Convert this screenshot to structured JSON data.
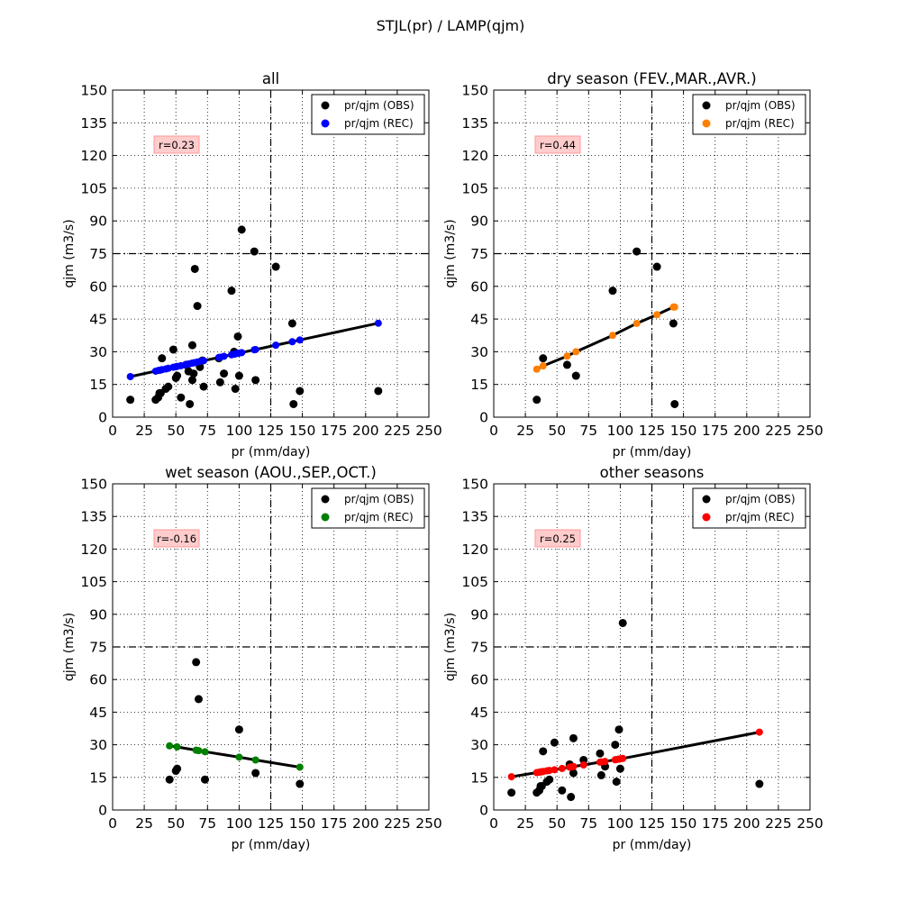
{
  "figure": {
    "suptitle": "STJL(pr) / LAMP(qjm)"
  },
  "chart_data": [
    {
      "type": "scatter",
      "title": "all",
      "xlabel": "pr (mm/day)",
      "ylabel": "qjm (m3/s)",
      "xlim": [
        0,
        250
      ],
      "ylim": [
        0,
        150
      ],
      "xticks": [
        "0",
        "25",
        "50",
        "75",
        "100",
        "125",
        "150",
        "175",
        "200",
        "225",
        "250"
      ],
      "yticks": [
        "0",
        "15",
        "30",
        "45",
        "60",
        "75",
        "90",
        "105",
        "120",
        "135",
        "150"
      ],
      "grid": true,
      "legend_position": "top-right",
      "ref_x": 125,
      "ref_y": 75,
      "annotation": "r=0.23",
      "rec_color": "#0000ff",
      "series": [
        {
          "name": "pr/qjm (OBS)",
          "color": "#000000",
          "points": [
            [
              14,
              8
            ],
            [
              34,
              8
            ],
            [
              36,
              9
            ],
            [
              37,
              11
            ],
            [
              38,
              11
            ],
            [
              39,
              27
            ],
            [
              42,
              13
            ],
            [
              44,
              14
            ],
            [
              48,
              31
            ],
            [
              50,
              18
            ],
            [
              51,
              19
            ],
            [
              54,
              9
            ],
            [
              58,
              24
            ],
            [
              60,
              21
            ],
            [
              61,
              6
            ],
            [
              63,
              17
            ],
            [
              63,
              33
            ],
            [
              64,
              20
            ],
            [
              65,
              68
            ],
            [
              67,
              51
            ],
            [
              69,
              23
            ],
            [
              71,
              26
            ],
            [
              72,
              14
            ],
            [
              84,
              27
            ],
            [
              85,
              16
            ],
            [
              88,
              20
            ],
            [
              94,
              58
            ],
            [
              96,
              30
            ],
            [
              97,
              13
            ],
            [
              99,
              37
            ],
            [
              100,
              19
            ],
            [
              102,
              86
            ],
            [
              112,
              76
            ],
            [
              113,
              17
            ],
            [
              129,
              69
            ],
            [
              142,
              43
            ],
            [
              143,
              6
            ],
            [
              148,
              12
            ],
            [
              210,
              12
            ]
          ]
        },
        {
          "name": "pr/qjm (REC)",
          "color": "#0000ff",
          "points": [
            [
              14,
              18.6
            ],
            [
              34,
              21.1
            ],
            [
              36,
              21.4
            ],
            [
              37,
              21.5
            ],
            [
              38,
              21.6
            ],
            [
              39,
              21.8
            ],
            [
              42,
              22.1
            ],
            [
              44,
              22.4
            ],
            [
              48,
              22.9
            ],
            [
              50,
              23.1
            ],
            [
              51,
              23.3
            ],
            [
              54,
              23.6
            ],
            [
              58,
              24.1
            ],
            [
              60,
              24.4
            ],
            [
              61,
              24.5
            ],
            [
              63,
              24.8
            ],
            [
              64,
              24.9
            ],
            [
              65,
              25.0
            ],
            [
              67,
              25.3
            ],
            [
              69,
              25.5
            ],
            [
              71,
              25.8
            ],
            [
              72,
              25.9
            ],
            [
              84,
              27.4
            ],
            [
              85,
              27.5
            ],
            [
              88,
              27.9
            ],
            [
              94,
              28.6
            ],
            [
              96,
              28.9
            ],
            [
              97,
              29.0
            ],
            [
              99,
              29.3
            ],
            [
              100,
              29.4
            ],
            [
              102,
              29.6
            ],
            [
              112,
              30.9
            ],
            [
              113,
              31.0
            ],
            [
              129,
              33.0
            ],
            [
              142,
              34.6
            ],
            [
              148,
              35.4
            ],
            [
              210,
              43.1
            ]
          ]
        }
      ]
    },
    {
      "type": "scatter",
      "title": "dry season (FEV.,MAR.,AVR.)",
      "xlabel": "pr (mm/day)",
      "ylabel": "qjm (m3/s)",
      "xlim": [
        0,
        250
      ],
      "ylim": [
        0,
        150
      ],
      "xticks": [
        "0",
        "25",
        "50",
        "75",
        "100",
        "125",
        "150",
        "175",
        "200",
        "225",
        "250"
      ],
      "yticks": [
        "0",
        "15",
        "30",
        "45",
        "60",
        "75",
        "90",
        "105",
        "120",
        "135",
        "150"
      ],
      "grid": true,
      "legend_position": "top-right",
      "ref_x": 125,
      "ref_y": 75,
      "annotation": "r=0.44",
      "rec_color": "#ff8000",
      "series": [
        {
          "name": "pr/qjm (OBS)",
          "color": "#000000",
          "points": [
            [
              34,
              8
            ],
            [
              39,
              27
            ],
            [
              58,
              24
            ],
            [
              65,
              19
            ],
            [
              94,
              58
            ],
            [
              113,
              76
            ],
            [
              129,
              69
            ],
            [
              142,
              43
            ],
            [
              143,
              6
            ]
          ]
        },
        {
          "name": "pr/qjm (REC)",
          "color": "#ff8000",
          "points": [
            [
              34,
              22
            ],
            [
              39,
              23.5
            ],
            [
              58,
              28
            ],
            [
              65,
              30
            ],
            [
              94,
              37.5
            ],
            [
              113,
              43
            ],
            [
              129,
              47
            ],
            [
              142,
              50.5
            ],
            [
              143,
              50.5
            ]
          ]
        }
      ]
    },
    {
      "type": "scatter",
      "title": "wet season (AOU.,SEP.,OCT.)",
      "xlabel": "pr (mm/day)",
      "ylabel": "qjm (m3/s)",
      "xlim": [
        0,
        250
      ],
      "ylim": [
        0,
        150
      ],
      "xticks": [
        "0",
        "25",
        "50",
        "75",
        "100",
        "125",
        "150",
        "175",
        "200",
        "225",
        "250"
      ],
      "yticks": [
        "0",
        "15",
        "30",
        "45",
        "60",
        "75",
        "90",
        "105",
        "120",
        "135",
        "150"
      ],
      "grid": true,
      "legend_position": "top-right",
      "ref_x": 125,
      "ref_y": 75,
      "annotation": "r=-0.16",
      "rec_color": "#008000",
      "series": [
        {
          "name": "pr/qjm (OBS)",
          "color": "#000000",
          "points": [
            [
              45,
              14
            ],
            [
              50,
              18
            ],
            [
              51,
              19
            ],
            [
              66,
              68
            ],
            [
              68,
              51
            ],
            [
              73,
              14
            ],
            [
              100,
              37
            ],
            [
              113,
              17
            ],
            [
              148,
              12
            ]
          ]
        },
        {
          "name": "pr/qjm (REC)",
          "color": "#008000",
          "points": [
            [
              45,
              29.5
            ],
            [
              51,
              29
            ],
            [
              66,
              27.5
            ],
            [
              68,
              27.3
            ],
            [
              73,
              26.8
            ],
            [
              100,
              24.3
            ],
            [
              113,
              23
            ],
            [
              148,
              19.7
            ]
          ]
        }
      ]
    },
    {
      "type": "scatter",
      "title": "other seasons",
      "xlabel": "pr (mm/day)",
      "ylabel": "qjm (m3/s)",
      "xlim": [
        0,
        250
      ],
      "ylim": [
        0,
        150
      ],
      "xticks": [
        "0",
        "25",
        "50",
        "75",
        "100",
        "125",
        "150",
        "175",
        "200",
        "225",
        "250"
      ],
      "yticks": [
        "0",
        "15",
        "30",
        "45",
        "60",
        "75",
        "90",
        "105",
        "120",
        "135",
        "150"
      ],
      "grid": true,
      "legend_position": "top-right",
      "ref_x": 125,
      "ref_y": 75,
      "annotation": "r=0.25",
      "rec_color": "#ff0000",
      "series": [
        {
          "name": "pr/qjm (OBS)",
          "color": "#000000",
          "points": [
            [
              14,
              8
            ],
            [
              34,
              8
            ],
            [
              36,
              9
            ],
            [
              37,
              11
            ],
            [
              38,
              11
            ],
            [
              39,
              27
            ],
            [
              42,
              13
            ],
            [
              44,
              14
            ],
            [
              48,
              31
            ],
            [
              54,
              9
            ],
            [
              60,
              21
            ],
            [
              61,
              6
            ],
            [
              63,
              17
            ],
            [
              63,
              33
            ],
            [
              71,
              23
            ],
            [
              84,
              26
            ],
            [
              85,
              16
            ],
            [
              88,
              20
            ],
            [
              96,
              30
            ],
            [
              97,
              13
            ],
            [
              99,
              37
            ],
            [
              100,
              19
            ],
            [
              102,
              86
            ],
            [
              210,
              12
            ]
          ]
        },
        {
          "name": "pr/qjm (REC)",
          "color": "#ff0000",
          "points": [
            [
              14,
              15.3
            ],
            [
              34,
              17.2
            ],
            [
              36,
              17.4
            ],
            [
              37,
              17.5
            ],
            [
              38,
              17.6
            ],
            [
              39,
              17.7
            ],
            [
              42,
              18.0
            ],
            [
              44,
              18.2
            ],
            [
              48,
              18.5
            ],
            [
              54,
              19.1
            ],
            [
              60,
              19.7
            ],
            [
              61,
              19.8
            ],
            [
              63,
              20.0
            ],
            [
              71,
              20.7
            ],
            [
              84,
              22.0
            ],
            [
              85,
              22.1
            ],
            [
              88,
              22.3
            ],
            [
              96,
              23.1
            ],
            [
              97,
              23.2
            ],
            [
              99,
              23.4
            ],
            [
              100,
              23.5
            ],
            [
              102,
              23.7
            ],
            [
              210,
              35.8
            ]
          ]
        }
      ]
    }
  ]
}
